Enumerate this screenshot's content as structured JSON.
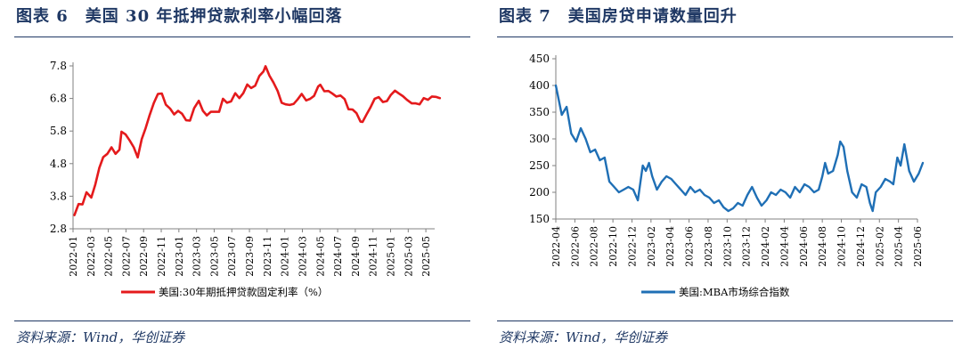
{
  "panels": [
    {
      "title": "图表 6　美国 30 年抵押贷款利率小幅回落",
      "source": "资料来源：Wind，华创证券",
      "chart_data": {
        "type": "line",
        "ylim": [
          2.8,
          7.8
        ],
        "yticks": [
          "2.8",
          "3.8",
          "4.8",
          "5.8",
          "6.8",
          "7.8"
        ],
        "x_start": "2022-01",
        "x_end": "2025-06",
        "xticks": [
          "2022-01",
          "2022-03",
          "2022-05",
          "2022-07",
          "2022-09",
          "2022-11",
          "2023-01",
          "2023-03",
          "2023-05",
          "2023-07",
          "2023-09",
          "2023-11",
          "2024-01",
          "2024-03",
          "2024-05",
          "2024-07",
          "2024-09",
          "2024-11",
          "2025-01",
          "2025-03",
          "2025-05"
        ],
        "series": [
          {
            "name": "美国:30年期抵押贷款固定利率（%）",
            "color": "#e41a1c",
            "x": [
              "2022-01-06",
              "2022-01-20",
              "2022-02-03",
              "2022-02-17",
              "2022-03-03",
              "2022-03-17",
              "2022-03-31",
              "2022-04-14",
              "2022-04-28",
              "2022-05-12",
              "2022-05-26",
              "2022-06-09",
              "2022-06-16",
              "2022-06-30",
              "2022-07-14",
              "2022-07-28",
              "2022-08-11",
              "2022-08-25",
              "2022-09-08",
              "2022-09-22",
              "2022-10-06",
              "2022-10-20",
              "2022-11-03",
              "2022-11-17",
              "2022-12-01",
              "2022-12-15",
              "2022-12-29",
              "2023-01-12",
              "2023-01-26",
              "2023-02-09",
              "2023-02-23",
              "2023-03-09",
              "2023-03-23",
              "2023-04-06",
              "2023-04-20",
              "2023-05-04",
              "2023-05-18",
              "2023-06-01",
              "2023-06-15",
              "2023-06-29",
              "2023-07-13",
              "2023-07-27",
              "2023-08-10",
              "2023-08-24",
              "2023-09-07",
              "2023-09-21",
              "2023-10-05",
              "2023-10-19",
              "2023-10-26",
              "2023-11-09",
              "2023-11-23",
              "2023-12-07",
              "2023-12-21",
              "2024-01-04",
              "2024-01-18",
              "2024-02-01",
              "2024-02-15",
              "2024-02-29",
              "2024-03-14",
              "2024-03-28",
              "2024-04-11",
              "2024-04-25",
              "2024-05-02",
              "2024-05-16",
              "2024-05-30",
              "2024-06-13",
              "2024-06-27",
              "2024-07-11",
              "2024-07-25",
              "2024-08-08",
              "2024-08-22",
              "2024-09-05",
              "2024-09-19",
              "2024-09-26",
              "2024-10-10",
              "2024-10-24",
              "2024-11-07",
              "2024-11-21",
              "2024-12-05",
              "2024-12-19",
              "2025-01-02",
              "2025-01-16",
              "2025-01-30",
              "2025-02-13",
              "2025-02-27",
              "2025-03-13",
              "2025-03-27",
              "2025-04-10",
              "2025-04-24",
              "2025-05-08",
              "2025-05-22",
              "2025-06-05",
              "2025-06-19"
            ],
            "values": [
              3.22,
              3.56,
              3.55,
              3.92,
              3.76,
              4.16,
              4.67,
              5.0,
              5.1,
              5.3,
              5.1,
              5.23,
              5.78,
              5.7,
              5.51,
              5.3,
              4.99,
              5.55,
              5.89,
              6.29,
              6.66,
              6.94,
              6.95,
              6.61,
              6.49,
              6.31,
              6.42,
              6.33,
              6.13,
              6.12,
              6.5,
              6.73,
              6.42,
              6.28,
              6.39,
              6.39,
              6.39,
              6.79,
              6.67,
              6.71,
              6.96,
              6.81,
              6.96,
              7.23,
              7.12,
              7.19,
              7.49,
              7.63,
              7.79,
              7.5,
              7.29,
              7.03,
              6.67,
              6.62,
              6.6,
              6.63,
              6.77,
              6.94,
              6.74,
              6.79,
              6.88,
              7.17,
              7.22,
              7.02,
              7.03,
              6.95,
              6.86,
              6.89,
              6.78,
              6.47,
              6.46,
              6.35,
              6.09,
              6.08,
              6.32,
              6.54,
              6.79,
              6.84,
              6.69,
              6.72,
              6.91,
              7.04,
              6.95,
              6.87,
              6.76,
              6.65,
              6.65,
              6.62,
              6.81,
              6.76,
              6.86,
              6.85,
              6.81
            ]
          }
        ]
      }
    },
    {
      "title": "图表 7　美国房贷申请数量回升",
      "source": "资料来源：Wind，华创证券",
      "chart_data": {
        "type": "line",
        "ylim": [
          150,
          450
        ],
        "yticks": [
          "150",
          "200",
          "250",
          "300",
          "350",
          "400",
          "450"
        ],
        "x_start": "2022-04",
        "x_end": "2025-06",
        "xticks": [
          "2022-04",
          "2022-06",
          "2022-08",
          "2022-10",
          "2022-12",
          "2023-02",
          "2023-04",
          "2023-06",
          "2023-08",
          "2023-10",
          "2023-12",
          "2024-02",
          "2024-04",
          "2024-06",
          "2024-08",
          "2024-10",
          "2024-12",
          "2025-02",
          "2025-04",
          "2025-06"
        ],
        "series": [
          {
            "name": "美国:MBA市场综合指数",
            "color": "#1f6fb5",
            "x": [
              "2022-04-01",
              "2022-04-20",
              "2022-05-05",
              "2022-05-20",
              "2022-06-05",
              "2022-06-20",
              "2022-07-05",
              "2022-07-20",
              "2022-08-05",
              "2022-08-20",
              "2022-09-05",
              "2022-09-20",
              "2022-10-05",
              "2022-10-20",
              "2022-11-05",
              "2022-11-20",
              "2022-12-05",
              "2022-12-20",
              "2023-01-05",
              "2023-01-15",
              "2023-01-25",
              "2023-02-05",
              "2023-02-20",
              "2023-03-05",
              "2023-03-20",
              "2023-04-05",
              "2023-04-20",
              "2023-05-05",
              "2023-05-20",
              "2023-06-05",
              "2023-06-20",
              "2023-07-05",
              "2023-07-20",
              "2023-08-05",
              "2023-08-20",
              "2023-09-05",
              "2023-09-20",
              "2023-10-05",
              "2023-10-20",
              "2023-11-05",
              "2023-11-20",
              "2023-12-05",
              "2023-12-20",
              "2024-01-05",
              "2024-01-20",
              "2024-02-05",
              "2024-02-20",
              "2024-03-05",
              "2024-03-20",
              "2024-04-05",
              "2024-04-20",
              "2024-05-05",
              "2024-05-20",
              "2024-06-05",
              "2024-06-20",
              "2024-07-05",
              "2024-07-20",
              "2024-08-01",
              "2024-08-10",
              "2024-08-20",
              "2024-09-05",
              "2024-09-20",
              "2024-09-28",
              "2024-10-08",
              "2024-10-20",
              "2024-11-05",
              "2024-11-20",
              "2024-12-05",
              "2024-12-20",
              "2025-01-01",
              "2025-01-10",
              "2025-01-20",
              "2025-02-05",
              "2025-02-20",
              "2025-03-05",
              "2025-03-15",
              "2025-03-28",
              "2025-04-08",
              "2025-04-20",
              "2025-05-05",
              "2025-05-20",
              "2025-06-05",
              "2025-06-18"
            ],
            "values": [
              400,
              345,
              360,
              310,
              295,
              320,
              300,
              275,
              280,
              260,
              265,
              220,
              210,
              200,
              205,
              210,
              205,
              185,
              250,
              240,
              255,
              230,
              205,
              220,
              230,
              225,
              215,
              205,
              195,
              210,
              200,
              205,
              195,
              190,
              180,
              185,
              172,
              165,
              170,
              180,
              175,
              195,
              210,
              190,
              175,
              185,
              200,
              195,
              205,
              200,
              190,
              210,
              200,
              215,
              210,
              200,
              205,
              230,
              255,
              235,
              240,
              270,
              295,
              285,
              240,
              200,
              190,
              215,
              210,
              180,
              165,
              200,
              210,
              225,
              220,
              215,
              265,
              250,
              290,
              240,
              220,
              235,
              255
            ]
          }
        ]
      }
    }
  ]
}
